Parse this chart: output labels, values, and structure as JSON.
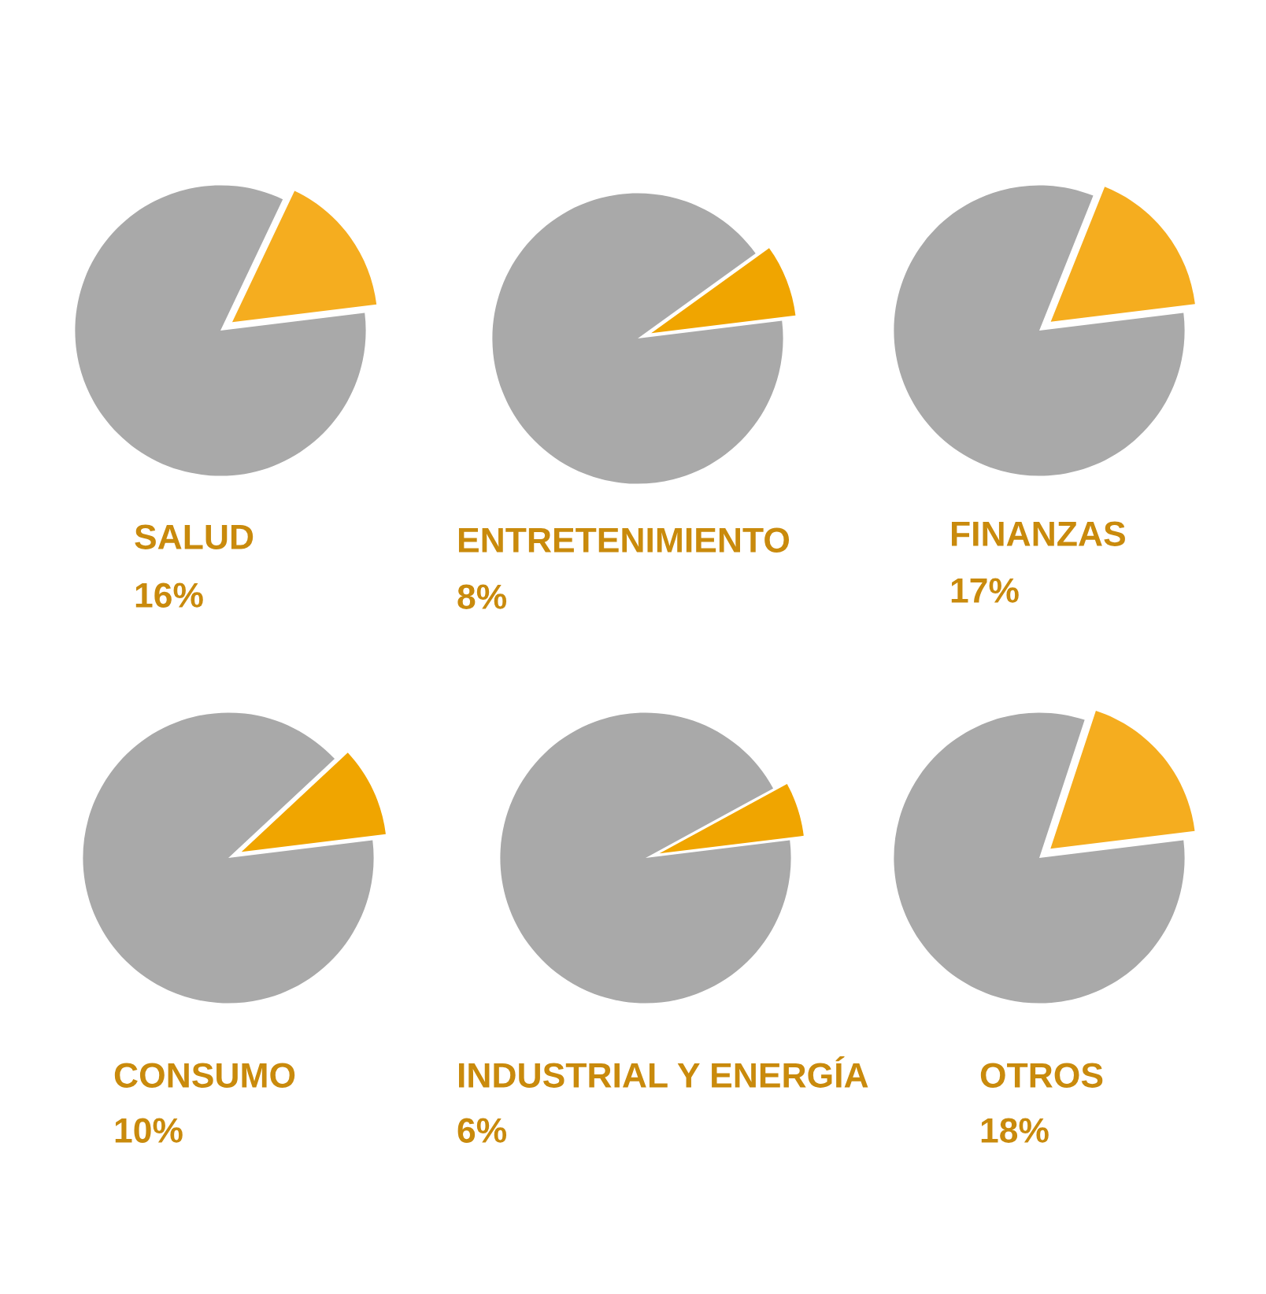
{
  "chart_data": [
    {
      "type": "pie",
      "title": "SALUD",
      "categories": [
        null,
        null
      ],
      "values": [
        16,
        84
      ],
      "colors": [
        "#f5ad1f",
        "#a9a9a9"
      ],
      "annotations": [
        "16%"
      ]
    },
    {
      "type": "pie",
      "title": "ENTRETENIMIENTO",
      "categories": [
        null,
        null
      ],
      "values": [
        8,
        92
      ],
      "colors": [
        "#f0a500",
        "#a9a9a9"
      ],
      "annotations": [
        "8%"
      ]
    },
    {
      "type": "pie",
      "title": "FINANZAS",
      "categories": [
        null,
        null
      ],
      "values": [
        17,
        83
      ],
      "colors": [
        "#f5ad1f",
        "#a9a9a9"
      ],
      "annotations": [
        "17%"
      ]
    },
    {
      "type": "pie",
      "title": "CONSUMO",
      "categories": [
        null,
        null
      ],
      "values": [
        10,
        90
      ],
      "colors": [
        "#f0a500",
        "#a9a9a9"
      ],
      "annotations": [
        "10%"
      ]
    },
    {
      "type": "pie",
      "title": "INDUSTRIAL Y ENERGÍA",
      "categories": [
        null,
        null
      ],
      "values": [
        6,
        94
      ],
      "colors": [
        "#f0a500",
        "#a9a9a9"
      ],
      "annotations": [
        "6%"
      ]
    },
    {
      "type": "pie",
      "title": "OTROS",
      "categories": [
        null,
        null
      ],
      "values": [
        18,
        82
      ],
      "colors": [
        "#f5ad1f",
        "#a9a9a9"
      ],
      "annotations": [
        "18%"
      ]
    }
  ]
}
